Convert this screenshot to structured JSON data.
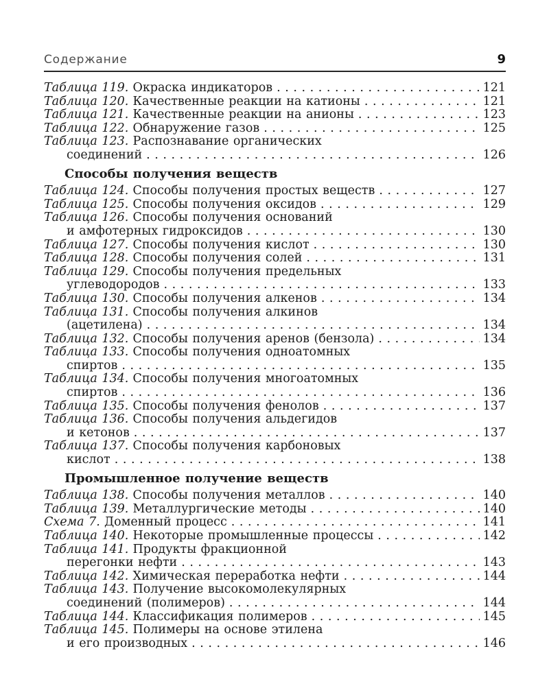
{
  "colors": {
    "background": "#ffffff",
    "body_text": "#1b1b1b",
    "header_text": "#4d4d4d",
    "rule": "#262626"
  },
  "header": {
    "title": "Содержание",
    "page_number": "9"
  },
  "toc": {
    "sections": [
      {
        "heading": "",
        "items": [
          {
            "label": "Таблица 119.",
            "title": "Окраска индикаторов",
            "cont": "",
            "page": "121"
          },
          {
            "label": "Таблица 120.",
            "title": "Качественные реакции на катионы",
            "cont": "",
            "page": "121"
          },
          {
            "label": "Таблица 121.",
            "title": "Качественные реакции на анионы",
            "cont": "",
            "page": "123"
          },
          {
            "label": "Таблица 122.",
            "title": "Обнаружение газов",
            "cont": "",
            "page": "125"
          },
          {
            "label": "Таблица 123.",
            "title": "Распознавание органических",
            "cont": "соединений",
            "page": "126"
          }
        ]
      },
      {
        "heading": "Способы получения веществ",
        "items": [
          {
            "label": "Таблица 124.",
            "title": "Способы получения простых веществ",
            "cont": "",
            "page": "127"
          },
          {
            "label": "Таблица 125.",
            "title": "Способы получения оксидов",
            "cont": "",
            "page": "129"
          },
          {
            "label": "Таблица 126.",
            "title": "Способы получения оснований",
            "cont": "и амфотерных гидроксидов",
            "page": "130"
          },
          {
            "label": "Таблица 127.",
            "title": "Способы получения кислот",
            "cont": "",
            "page": "130"
          },
          {
            "label": "Таблица 128.",
            "title": "Способы получения солей",
            "cont": "",
            "page": "131"
          },
          {
            "label": "Таблица 129.",
            "title": "Способы получения предельных",
            "cont": "углеводородов",
            "page": "133"
          },
          {
            "label": "Таблица 130.",
            "title": "Способы получения алкенов",
            "cont": "",
            "page": "134"
          },
          {
            "label": "Таблица 131.",
            "title": "Способы получения алкинов",
            "cont": "(ацетилена)",
            "page": "134"
          },
          {
            "label": "Таблица 132.",
            "title": "Способы получения аренов (бензола)",
            "cont": "",
            "page": "134"
          },
          {
            "label": "Таблица 133.",
            "title": "Способы получения одноатомных",
            "cont": "спиртов",
            "page": "135"
          },
          {
            "label": "Таблица 134.",
            "title": "Способы получения многоатомных",
            "cont": "спиртов",
            "page": "136"
          },
          {
            "label": "Таблица 135.",
            "title": "Способы получения фенолов",
            "cont": "",
            "page": "137"
          },
          {
            "label": "Таблица 136.",
            "title": "Способы получения альдегидов",
            "cont": "и кетонов",
            "page": "137"
          },
          {
            "label": "Таблица 137.",
            "title": "Способы получения карбоновых",
            "cont": "кислот",
            "page": "138"
          }
        ]
      },
      {
        "heading": "Промышленное получение веществ",
        "items": [
          {
            "label": "Таблица 138.",
            "title": "Способы получения металлов",
            "cont": "",
            "page": "140"
          },
          {
            "label": "Таблица 139.",
            "title": "Металлургические методы",
            "cont": "",
            "page": "140"
          },
          {
            "label": "Схема 7.",
            "title": "Доменный процесс",
            "cont": "",
            "page": "141"
          },
          {
            "label": "Таблица 140.",
            "title": "Некоторые промышленные процессы",
            "cont": "",
            "page": "142"
          },
          {
            "label": "Таблица 141.",
            "title": "Продукты фракционной",
            "cont": "перегонки нефти",
            "page": "143"
          },
          {
            "label": "Таблица 142.",
            "title": "Химическая переработка нефти",
            "cont": "",
            "page": "144"
          },
          {
            "label": "Таблица 143.",
            "title": "Получение высокомолекулярных",
            "cont": "соединений (полимеров)",
            "page": "144"
          },
          {
            "label": "Таблица 144.",
            "title": "Классификация полимеров",
            "cont": "",
            "page": "145"
          },
          {
            "label": "Таблица 145.",
            "title": "Полимеры на основе этилена",
            "cont": "и его производных",
            "page": "146"
          }
        ]
      }
    ]
  }
}
